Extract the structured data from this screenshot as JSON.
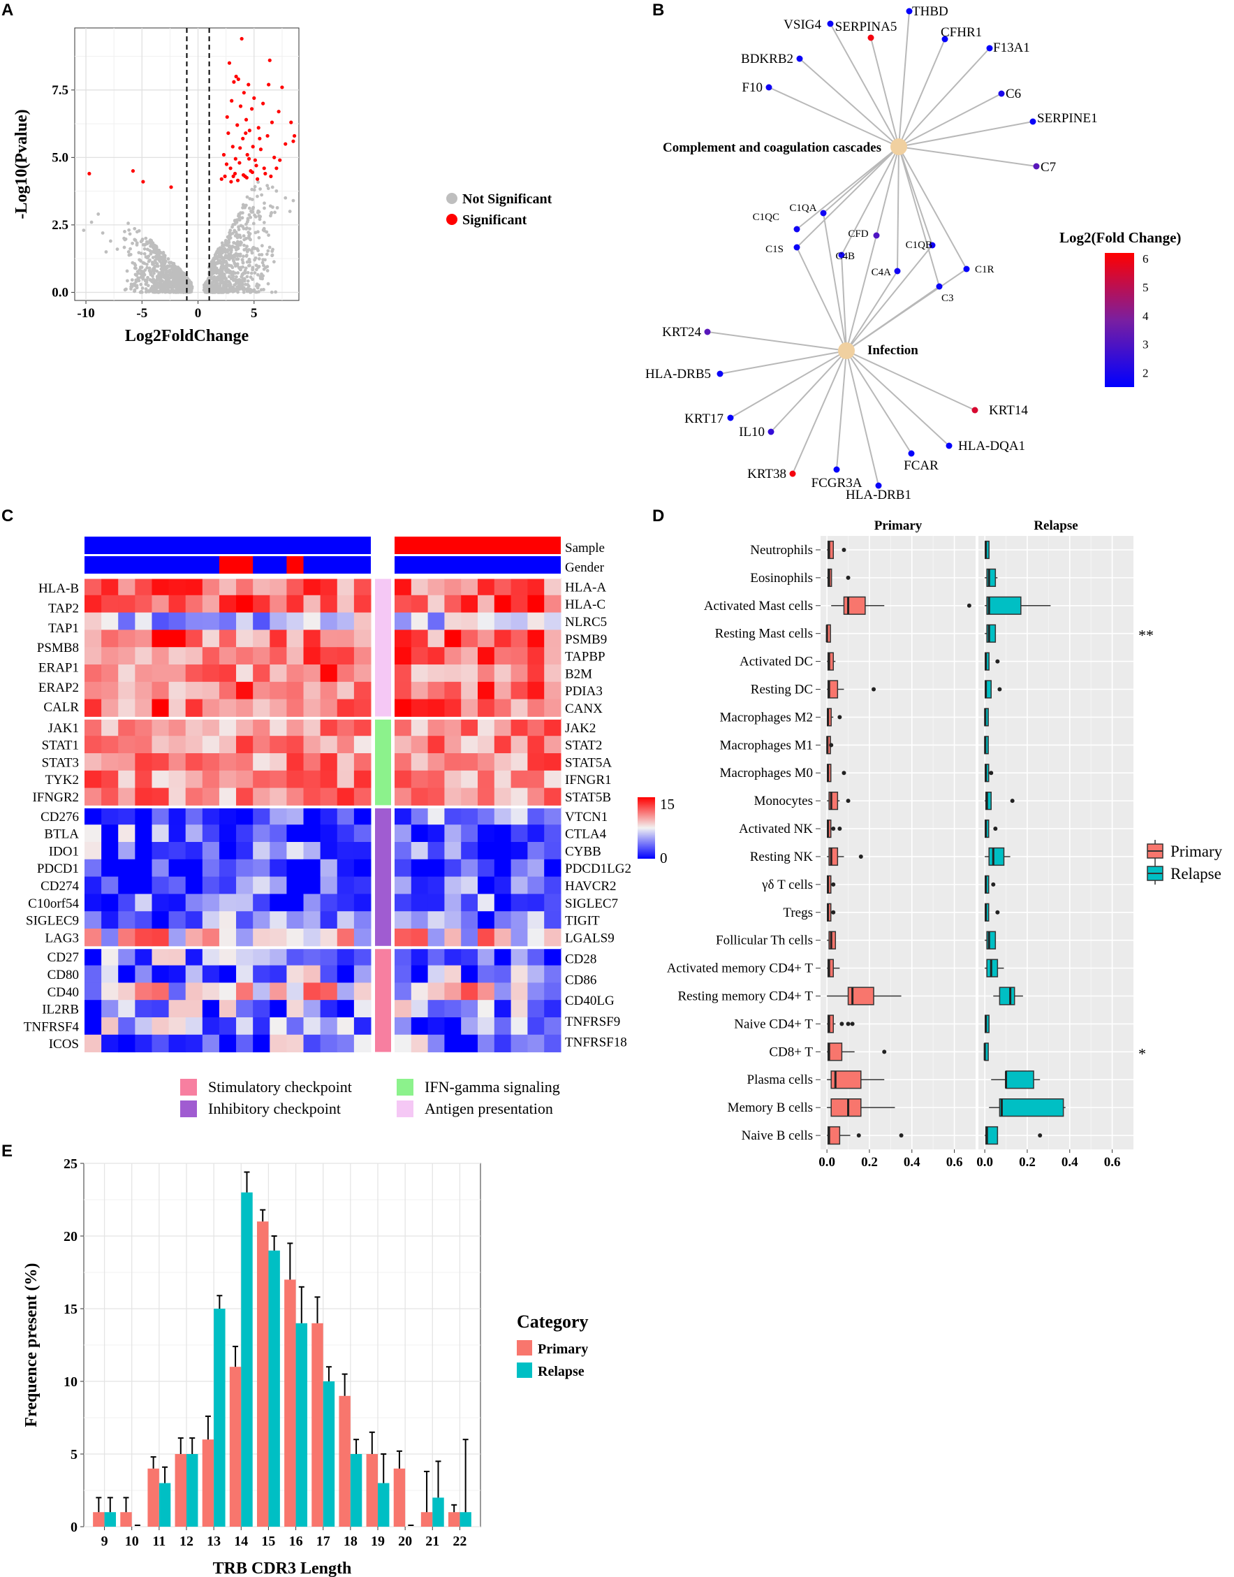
{
  "colors": {
    "primary": "#F8766D",
    "relapse": "#00BFC4",
    "significant": "#FF0000",
    "not_significant": "#BEBEBE",
    "panel_bg": "#EBEBEB",
    "node": "#F0D0A0",
    "hm_low": "#0000FF",
    "hm_mid": "#F2F2F2",
    "hm_high": "#FF0000",
    "stim": "#F77FA0",
    "inhib": "#A05CD1",
    "ifn": "#8CF28C",
    "antigen": "#F5C8F5",
    "gender_a": "#0000FF",
    "gender_b": "#FF0000"
  },
  "panels": {
    "a": "A",
    "b": "B",
    "c": "C",
    "d": "D",
    "e": "E"
  },
  "chart_data": [
    {
      "panel": "A",
      "type": "scatter",
      "title": "",
      "xlabel": "Log2FoldChange",
      "ylabel": "-Log10(Pvalue)",
      "xlim": [
        -11,
        9
      ],
      "ylim": [
        -0.3,
        9.8
      ],
      "xticks": [
        "-10",
        "-5",
        "0",
        "5"
      ],
      "yticks": [
        "0.0",
        "2.5",
        "5.0",
        "7.5"
      ],
      "thresholds": [
        -1,
        1
      ],
      "legend": [
        "Not Significant",
        "Significant"
      ],
      "significant_points": [
        [
          -9.7,
          4.4
        ],
        [
          -5.8,
          4.5
        ],
        [
          -4.9,
          4.1
        ],
        [
          -2.4,
          3.9
        ],
        [
          2.1,
          4.2
        ],
        [
          2.3,
          5.1
        ],
        [
          2.4,
          4.3
        ],
        [
          2.6,
          6.5
        ],
        [
          2.7,
          5.9
        ],
        [
          2.8,
          8.5
        ],
        [
          2.9,
          4.6
        ],
        [
          3.0,
          7.1
        ],
        [
          3.1,
          5.4
        ],
        [
          3.2,
          7.8
        ],
        [
          3.3,
          4.4
        ],
        [
          3.4,
          8.0
        ],
        [
          3.5,
          6.2
        ],
        [
          3.6,
          7.9
        ],
        [
          3.7,
          4.8
        ],
        [
          3.8,
          6.9
        ],
        [
          3.9,
          9.4
        ],
        [
          4.0,
          5.7
        ],
        [
          4.1,
          7.4
        ],
        [
          4.2,
          4.3
        ],
        [
          4.3,
          6.4
        ],
        [
          4.4,
          5.1
        ],
        [
          4.5,
          7.7
        ],
        [
          4.6,
          6.0
        ],
        [
          4.7,
          4.5
        ],
        [
          4.8,
          6.8
        ],
        [
          4.9,
          5.4
        ],
        [
          5.0,
          7.2
        ],
        [
          5.2,
          4.7
        ],
        [
          5.4,
          6.1
        ],
        [
          5.6,
          5.3
        ],
        [
          5.8,
          7.0
        ],
        [
          6.0,
          4.4
        ],
        [
          6.2,
          5.8
        ],
        [
          6.4,
          8.6
        ],
        [
          6.6,
          6.3
        ],
        [
          6.8,
          5.0
        ],
        [
          7.0,
          4.6
        ],
        [
          7.2,
          6.7
        ],
        [
          7.5,
          7.6
        ],
        [
          7.8,
          5.5
        ],
        [
          8.3,
          6.3
        ],
        [
          8.5,
          5.6
        ],
        [
          8.6,
          5.8
        ],
        [
          6.3,
          7.7
        ],
        [
          5.1,
          4.9
        ],
        [
          3.35,
          4.95
        ],
        [
          4.25,
          5.9
        ],
        [
          2.55,
          4.75
        ],
        [
          3.75,
          5.35
        ],
        [
          4.55,
          4.95
        ],
        [
          5.5,
          5.7
        ],
        [
          2.95,
          4.1
        ],
        [
          3.15,
          4.3
        ],
        [
          3.55,
          4.15
        ],
        [
          4.05,
          4.35
        ],
        [
          4.35,
          4.25
        ],
        [
          4.85,
          4.45
        ],
        [
          5.3,
          4.2
        ],
        [
          5.9,
          4.6
        ],
        [
          6.5,
          4.3
        ],
        [
          7.3,
          4.9
        ]
      ]
    },
    {
      "panel": "B",
      "type": "network",
      "legend_title": "Log2(Fold Change)",
      "legend_ticks": [
        "2",
        "3",
        "4",
        "5",
        "6"
      ],
      "hubs": [
        "Complement and coagulation cascades",
        "Infection"
      ],
      "nodes": [
        {
          "label": "THBD",
          "fc": 1.6,
          "hub": 0
        },
        {
          "label": "SERPINA5",
          "fc": 6.0,
          "hub": 0
        },
        {
          "label": "VSIG4",
          "fc": 1.7,
          "hub": 0
        },
        {
          "label": "CFHR1",
          "fc": 1.6,
          "hub": 0
        },
        {
          "label": "F13A1",
          "fc": 1.6,
          "hub": 0
        },
        {
          "label": "BDKRB2",
          "fc": 1.7,
          "hub": 0
        },
        {
          "label": "F10",
          "fc": 1.8,
          "hub": 0
        },
        {
          "label": "C6",
          "fc": 2.0,
          "hub": 0
        },
        {
          "label": "SERPINE1",
          "fc": 1.7,
          "hub": 0
        },
        {
          "label": "C7",
          "fc": 3.2,
          "hub": 0
        },
        {
          "label": "C1QA",
          "fc": 1.8,
          "hub": 2
        },
        {
          "label": "C1QC",
          "fc": 1.8,
          "hub": 0
        },
        {
          "label": "CFD",
          "fc": 3.0,
          "hub": 2
        },
        {
          "label": "C1QB",
          "fc": 1.8,
          "hub": 2
        },
        {
          "label": "C1S",
          "fc": 1.7,
          "hub": 2
        },
        {
          "label": "C4B",
          "fc": 1.8,
          "hub": 2
        },
        {
          "label": "C4A",
          "fc": 1.8,
          "hub": 2
        },
        {
          "label": "C1R",
          "fc": 1.6,
          "hub": 2
        },
        {
          "label": "C3",
          "fc": 1.7,
          "hub": 2
        },
        {
          "label": "KRT24",
          "fc": 3.2,
          "hub": 1
        },
        {
          "label": "HLA-DRB5",
          "fc": 1.7,
          "hub": 1
        },
        {
          "label": "KRT14",
          "fc": 5.5,
          "hub": 1
        },
        {
          "label": "KRT17",
          "fc": 1.6,
          "hub": 1
        },
        {
          "label": "IL10",
          "fc": 2.5,
          "hub": 1
        },
        {
          "label": "HLA-DQA1",
          "fc": 1.6,
          "hub": 1
        },
        {
          "label": "FCAR",
          "fc": 1.6,
          "hub": 1
        },
        {
          "label": "KRT38",
          "fc": 6.0,
          "hub": 1
        },
        {
          "label": "FCGR3A",
          "fc": 1.6,
          "hub": 1
        },
        {
          "label": "HLA-DRB1",
          "fc": 1.7,
          "hub": 1
        }
      ]
    },
    {
      "panel": "C",
      "type": "heatmap",
      "annotation_rows": [
        "Sample",
        "Gender"
      ],
      "scale_ticks": [
        "15",
        "0"
      ],
      "groups": [
        {
          "name": "Antigen presentation",
          "left": [
            "HLA-B",
            "TAP2",
            "TAP1",
            "PSMB8",
            "ERAP1",
            "ERAP2",
            "CALR"
          ],
          "right": [
            "HLA-A",
            "HLA-C",
            "NLRC5",
            "PSMB9",
            "TAPBP",
            "B2M",
            "PDIA3",
            "CANX"
          ]
        },
        {
          "name": "IFN-gamma signaling",
          "left": [
            "JAK1",
            "STAT1",
            "STAT3",
            "TYK2",
            "IFNGR2"
          ],
          "right": [
            "JAK2",
            "STAT2",
            "STAT5A",
            "IFNGR1",
            "STAT5B"
          ]
        },
        {
          "name": "Inhibitory checkpoint",
          "left": [
            "CD276",
            "BTLA",
            "IDO1",
            "PDCD1",
            "CD274",
            "C10orf54",
            "SIGLEC9",
            "LAG3"
          ],
          "right": [
            "VTCN1",
            "CTLA4",
            "CYBB",
            "PDCD1LG2",
            "HAVCR2",
            "SIGLEC7",
            "TIGIT",
            "LGALS9"
          ]
        },
        {
          "name": "Stimulatory checkpoint",
          "left": [
            "CD27",
            "CD80",
            "CD40",
            "IL2RB",
            "TNFRSF4",
            "ICOS"
          ],
          "right": [
            "CD28",
            "CD86",
            "CD40LG",
            "TNFRSF9",
            "TNFRSF18"
          ]
        }
      ],
      "legend": [
        "Stimulatory checkpoint",
        "IFN-gamma signaling",
        "Inhibitory checkpoint",
        "Antigen presentation"
      ]
    },
    {
      "panel": "D",
      "type": "boxplot",
      "facets": [
        "Primary",
        "Relapse"
      ],
      "xticks": [
        "0.0",
        "0.2",
        "0.4",
        "0.6"
      ],
      "xlim": [
        -0.03,
        0.7
      ],
      "legend": [
        "Primary",
        "Relapse"
      ],
      "rows": [
        {
          "cell": "Neutrophils",
          "sig": "",
          "p": [
            0,
            0.005,
            0.01,
            0.03,
            0.03,
            [
              0.08
            ]
          ],
          "r": [
            0,
            0.002,
            0.005,
            0.02,
            0.02,
            []
          ]
        },
        {
          "cell": "Eosinophils",
          "sig": "",
          "p": [
            0,
            0.005,
            0.01,
            0.02,
            0.02,
            [
              0.1
            ]
          ],
          "r": [
            0,
            0.01,
            0.02,
            0.05,
            0.06,
            []
          ]
        },
        {
          "cell": "Activated Mast cells",
          "sig": "",
          "p": [
            0.02,
            0.08,
            0.1,
            0.18,
            0.27,
            [
              0.67
            ]
          ],
          "r": [
            0,
            0.01,
            0.02,
            0.17,
            0.31,
            []
          ]
        },
        {
          "cell": "Resting Mast cells",
          "sig": "**",
          "p": [
            0,
            0,
            0,
            0.005,
            0.005,
            []
          ],
          "r": [
            0,
            0.01,
            0.02,
            0.05,
            0.05,
            []
          ]
        },
        {
          "cell": "Activated DC",
          "sig": "",
          "p": [
            0,
            0.005,
            0.01,
            0.03,
            0.04,
            []
          ],
          "r": [
            0,
            0.002,
            0.005,
            0.02,
            0.02,
            [
              0.06
            ]
          ]
        },
        {
          "cell": "Resting DC",
          "sig": "",
          "p": [
            0,
            0.005,
            0.01,
            0.05,
            0.08,
            [
              0.22
            ]
          ],
          "r": [
            0,
            0.002,
            0.005,
            0.03,
            0.03,
            [
              0.07
            ]
          ]
        },
        {
          "cell": "Macrophages M2",
          "sig": "",
          "p": [
            0,
            0.002,
            0.005,
            0.02,
            0.03,
            [
              0.06
            ]
          ],
          "r": [
            0,
            0,
            0.002,
            0.005,
            0.005,
            []
          ]
        },
        {
          "cell": "Macrophages M1",
          "sig": "",
          "p": [
            0,
            0,
            0.002,
            0.005,
            0.01,
            [
              0.02
            ]
          ],
          "r": [
            0,
            0,
            0.002,
            0.005,
            0.005,
            []
          ]
        },
        {
          "cell": "Macrophages M0",
          "sig": "",
          "p": [
            0,
            0.002,
            0.005,
            0.01,
            0.02,
            [
              0.08
            ]
          ],
          "r": [
            0,
            0.002,
            0.005,
            0.01,
            0.01,
            [
              0.03
            ]
          ]
        },
        {
          "cell": "Monocytes",
          "sig": "",
          "p": [
            0,
            0.01,
            0.02,
            0.05,
            0.06,
            [
              0.1
            ]
          ],
          "r": [
            0,
            0.005,
            0.01,
            0.03,
            0.03,
            [
              0.13
            ]
          ]
        },
        {
          "cell": "Activated NK",
          "sig": "",
          "p": [
            0,
            0.002,
            0.005,
            0.01,
            0.01,
            [
              0.03,
              0.06
            ]
          ],
          "r": [
            0,
            0.002,
            0.005,
            0.005,
            0.005,
            [
              0.05
            ]
          ]
        },
        {
          "cell": "Resting NK",
          "sig": "",
          "p": [
            0,
            0.01,
            0.02,
            0.05,
            0.08,
            [
              0.16
            ]
          ],
          "r": [
            0,
            0.02,
            0.04,
            0.09,
            0.12,
            []
          ]
        },
        {
          "cell": "γδ T cells",
          "sig": "",
          "p": [
            0,
            0.002,
            0.005,
            0.01,
            0.02,
            [
              0.03
            ]
          ],
          "r": [
            0,
            0.002,
            0.005,
            0.005,
            0.005,
            [
              0.04
            ]
          ]
        },
        {
          "cell": "Tregs",
          "sig": "",
          "p": [
            0,
            0.002,
            0.005,
            0.01,
            0.01,
            [
              0.03
            ]
          ],
          "r": [
            0,
            0.002,
            0.005,
            0.005,
            0.005,
            [
              0.06
            ]
          ]
        },
        {
          "cell": "Follicular Th cells",
          "sig": "",
          "p": [
            0,
            0.01,
            0.02,
            0.04,
            0.04,
            []
          ],
          "r": [
            0,
            0.01,
            0.02,
            0.05,
            0.05,
            []
          ]
        },
        {
          "cell": "Activated memory CD4+ T",
          "sig": "",
          "p": [
            0,
            0.005,
            0.01,
            0.03,
            0.06,
            []
          ],
          "r": [
            0,
            0.01,
            0.03,
            0.06,
            0.09,
            []
          ]
        },
        {
          "cell": "Resting memory CD4+ T",
          "sig": "",
          "p": [
            0,
            0.1,
            0.12,
            0.22,
            0.35,
            []
          ],
          "r": [
            0.04,
            0.07,
            0.12,
            0.14,
            0.18,
            []
          ]
        },
        {
          "cell": "Naive CD4+ T",
          "sig": "",
          "p": [
            0,
            0.005,
            0.01,
            0.03,
            0.04,
            [
              0.07,
              0.1,
              0.12
            ]
          ],
          "r": [
            0,
            0.002,
            0.005,
            0.02,
            0.02,
            []
          ]
        },
        {
          "cell": "CD8+ T",
          "sig": "*",
          "p": [
            0,
            0.005,
            0.01,
            0.07,
            0.13,
            [
              0.27
            ]
          ],
          "r": [
            0,
            0,
            0,
            0.005,
            0.005,
            []
          ]
        },
        {
          "cell": "Plasma cells",
          "sig": "",
          "p": [
            0,
            0.02,
            0.04,
            0.16,
            0.27,
            []
          ],
          "r": [
            0.03,
            0.1,
            0.1,
            0.23,
            0.26,
            []
          ]
        },
        {
          "cell": "Memory B cells",
          "sig": "",
          "p": [
            0,
            0.02,
            0.1,
            0.16,
            0.32,
            []
          ],
          "r": [
            0.02,
            0.07,
            0.08,
            0.37,
            0.38,
            []
          ]
        },
        {
          "cell": "Naive B cells",
          "sig": "",
          "p": [
            0,
            0.005,
            0.01,
            0.06,
            0.11,
            [
              0.15,
              0.35
            ]
          ],
          "r": [
            0,
            0.005,
            0.01,
            0.06,
            0.06,
            [
              0.26
            ]
          ]
        }
      ]
    },
    {
      "panel": "E",
      "type": "bar",
      "xlabel": "TRB CDR3 Length",
      "ylabel": "Frequence present (%)",
      "ylim": [
        0,
        25
      ],
      "yticks": [
        "0",
        "5",
        "10",
        "15",
        "20",
        "25"
      ],
      "legend_title": "Category",
      "categories": [
        "9",
        "10",
        "11",
        "12",
        "13",
        "14",
        "15",
        "16",
        "17",
        "18",
        "19",
        "20",
        "21",
        "22"
      ],
      "series": [
        {
          "name": "Primary",
          "values": [
            1,
            1,
            4,
            5,
            6,
            11,
            21,
            17,
            14,
            9,
            5,
            4,
            1,
            1
          ],
          "errors": [
            1,
            1,
            0.8,
            1.1,
            1.6,
            1.4,
            0.8,
            2.5,
            1.8,
            1.5,
            1.5,
            1.2,
            2.8,
            0.5
          ]
        },
        {
          "name": "Relapse",
          "values": [
            1,
            0,
            3,
            5,
            15,
            23,
            19,
            14,
            10,
            5,
            3,
            0,
            2,
            1
          ],
          "errors": [
            1,
            0,
            1.1,
            1.1,
            0.9,
            1.4,
            1,
            2.5,
            1,
            1,
            2,
            0,
            2.5,
            5
          ]
        }
      ]
    }
  ]
}
